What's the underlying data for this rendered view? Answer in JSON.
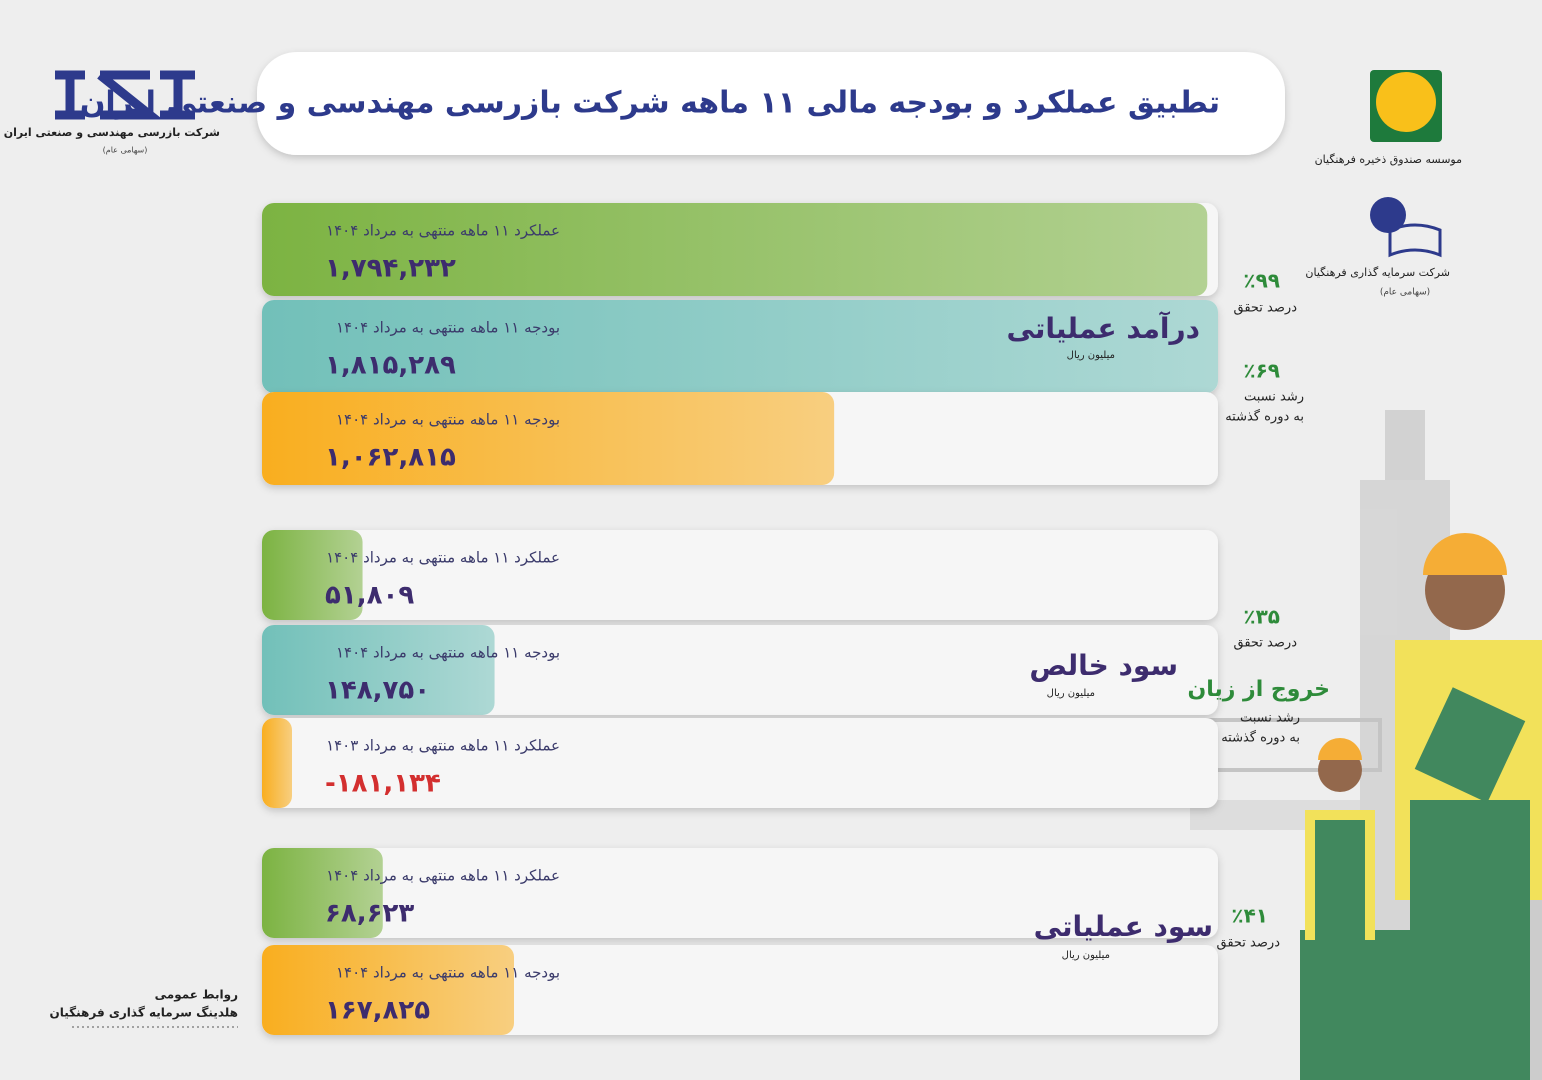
{
  "header": {
    "title": "تطبیق عملکرد و بودجه مالی ۱۱ ماهه شرکت بازرسی مهندسی و صنعتی ایران"
  },
  "logos": {
    "left": [
      "شرکت بازرسی مهندسی و صنعتی ایران",
      "(سهامی عام)"
    ],
    "right_top": "موسسه صندوق ذخیره فرهنگیان",
    "right_bottom": [
      "شرکت سرمایه گذاری فرهنگیان",
      "(سهامی عام)"
    ]
  },
  "footer": [
    "روابط عمومی",
    "هلدینگ سرمایه گذاری فرهنگیان"
  ],
  "chart_data": [
    {
      "type": "bar",
      "orientation": "horizontal",
      "title": "درآمد عملیاتی",
      "subtitle": "میلیون ریال",
      "categories": [
        "عملکرد ۱۱ ماهه منتهی به مرداد ۱۴۰۴",
        "بودجه ۱۱ ماهه منتهی به مرداد ۱۴۰۴",
        "بودجه ۱۱ ماهه منتهی به مرداد ۱۴۰۴"
      ],
      "values": [
        1794232,
        1815289,
        1062815
      ],
      "value_labels": [
        "۱,۷۹۴,۲۳۲",
        "۱,۸۱۵,۲۸۹",
        "۱,۰۶۲,۸۱۵"
      ],
      "colors": [
        "#7cb342",
        "#72c0b9",
        "#f9ae1f"
      ],
      "xlim": [
        0,
        1815289
      ],
      "annotations": [
        {
          "value": 99,
          "label": "٪۹۹",
          "text": [
            "درصد تحقق"
          ]
        },
        {
          "value": 69,
          "label": "٪۶۹",
          "text": [
            "رشد نسبت",
            "به دوره گذشته"
          ]
        }
      ]
    },
    {
      "type": "bar",
      "orientation": "horizontal",
      "title": "سود خالص",
      "subtitle": "میلیون ریال",
      "categories": [
        "عملکرد ۱۱ ماهه منتهی به مرداد ۱۴۰۴",
        "بودجه ۱۱ ماهه منتهی به مرداد ۱۴۰۴",
        "عملکرد ۱۱ ماهه منتهی به مرداد ۱۴۰۳"
      ],
      "values": [
        51809,
        148750,
        -181134
      ],
      "value_labels": [
        "۵۱,۸۰۹",
        "۱۴۸,۷۵۰",
        "-۱۸۱,۱۳۴"
      ],
      "colors": [
        "#7cb342",
        "#72c0b9",
        "#f9ae1f"
      ],
      "xlim": [
        0,
        680000
      ],
      "annotations": [
        {
          "value": 35,
          "label": "٪۳۵",
          "text": [
            "درصد تحقق"
          ]
        },
        {
          "label": "خروج از زیان",
          "text": [
            "رشد نسبت",
            "به دوره گذشته"
          ]
        }
      ]
    },
    {
      "type": "bar",
      "orientation": "horizontal",
      "title": "سود عملیاتی",
      "subtitle": "میلیون ریال",
      "categories": [
        "عملکرد ۱۱ ماهه منتهی به مرداد ۱۴۰۴",
        "بودجه ۱۱ ماهه منتهی به مرداد ۱۴۰۴"
      ],
      "values": [
        68623,
        167825
      ],
      "value_labels": [
        "۶۸,۶۲۳",
        "۱۶۷,۸۲۵"
      ],
      "colors": [
        "#7cb342",
        "#f9ae1f"
      ],
      "xlim": [
        0,
        700000
      ],
      "annotations": [
        {
          "value": 41,
          "label": "٪۴۱",
          "text": [
            "درصد تحقق"
          ]
        }
      ]
    }
  ]
}
